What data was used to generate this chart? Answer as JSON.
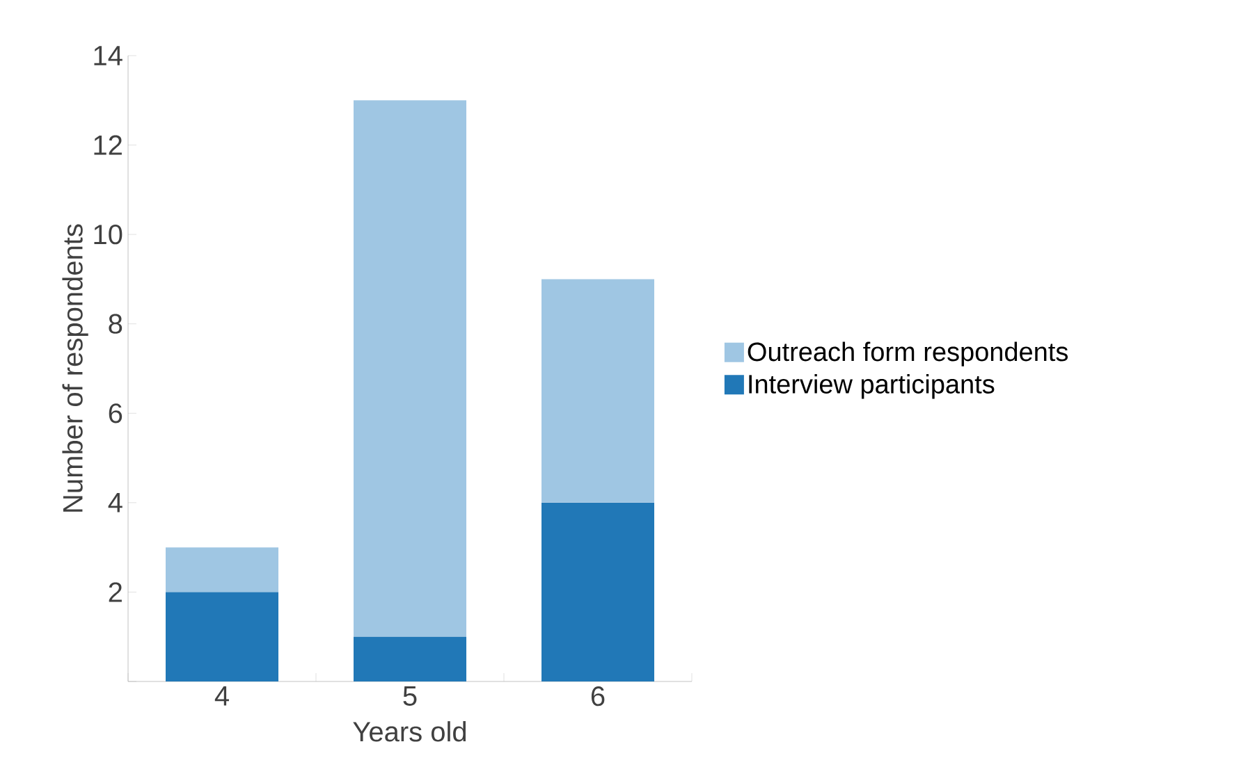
{
  "chart_data": {
    "type": "bar",
    "stacked": true,
    "xlabel": "Years old",
    "ylabel": "Number of respondents",
    "categories": [
      "4",
      "5",
      "6"
    ],
    "series": [
      {
        "name": "Interview participants",
        "color": "#2178b7",
        "values": [
          2,
          1,
          4
        ]
      },
      {
        "name": "Outreach form respondents",
        "color": "#9fc6e3",
        "values": [
          1,
          12,
          5
        ]
      }
    ],
    "ylim": [
      0,
      14
    ],
    "yticks": [
      {
        "value": 0,
        "label": null
      },
      2,
      4,
      6,
      8,
      10,
      12,
      14
    ],
    "grid": false,
    "legend": "right"
  }
}
